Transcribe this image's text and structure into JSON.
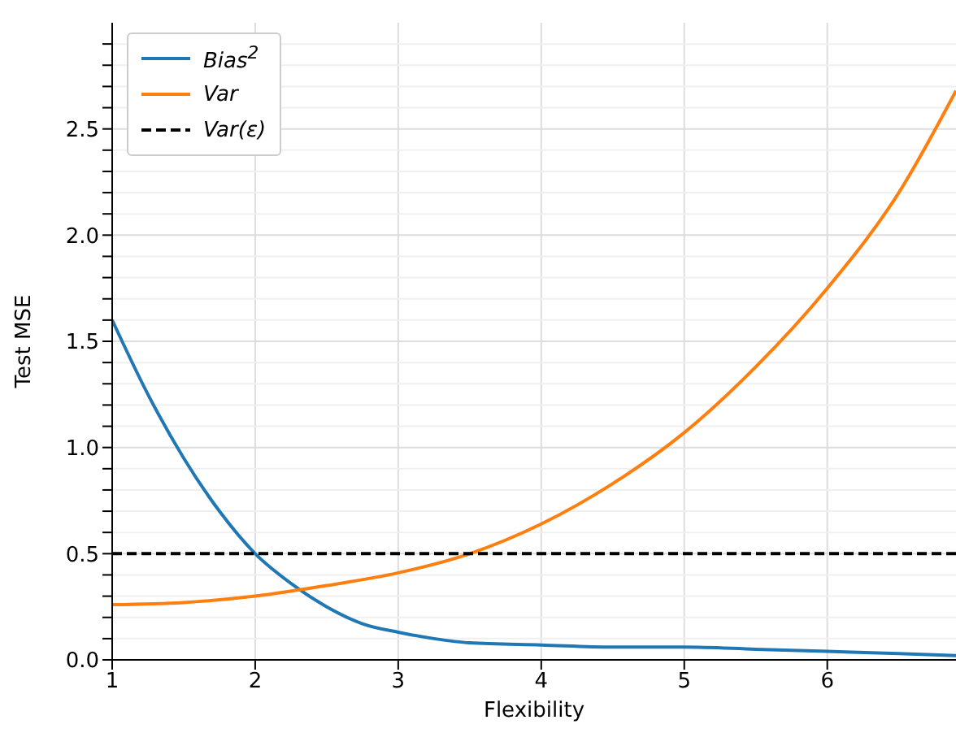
{
  "chart_data": {
    "type": "line",
    "xlabel": "Flexibility",
    "ylabel": "Test MSE",
    "xlim": [
      1,
      6.9
    ],
    "xticks": [
      1,
      2,
      3,
      4,
      5,
      6
    ],
    "ylim": [
      0,
      3.0
    ],
    "yticks": [
      {
        "value": 0,
        "label": "0.0"
      },
      {
        "value": 0.1,
        "label": null
      },
      {
        "value": 0.2,
        "label": null
      },
      {
        "value": 0.3,
        "label": null
      },
      {
        "value": 0.4,
        "label": null
      },
      0.5,
      {
        "value": 0.6,
        "label": null
      },
      {
        "value": 0.7,
        "label": null
      },
      {
        "value": 0.8,
        "label": null
      },
      {
        "value": 0.9,
        "label": null
      },
      {
        "value": 1,
        "label": "1.0"
      },
      {
        "value": 1.1,
        "label": null
      },
      {
        "value": 1.2,
        "label": null
      },
      {
        "value": 1.3,
        "label": null
      },
      {
        "value": 1.4,
        "label": null
      },
      1.5,
      {
        "value": 1.6,
        "label": null
      },
      {
        "value": 1.7,
        "label": null
      },
      {
        "value": 1.8,
        "label": null
      },
      {
        "value": 1.9,
        "label": null
      },
      {
        "value": 2,
        "label": "2.0"
      },
      {
        "value": 2.1,
        "label": null
      },
      {
        "value": 2.2,
        "label": null
      },
      {
        "value": 2.3,
        "label": null
      },
      {
        "value": 2.4,
        "label": null
      },
      2.5,
      {
        "value": 2.6,
        "label": null
      },
      {
        "value": 2.7,
        "label": null
      },
      {
        "value": 2.8,
        "label": null
      },
      {
        "value": 2.9,
        "label": null
      }
    ],
    "grid": true,
    "legend": "top left",
    "marker": "none",
    "series": [
      {
        "name": "Bias$^{2}$",
        "color": "#1f77b4",
        "line_style": "solid",
        "x": [
          1,
          1.25,
          1.5,
          1.75,
          2,
          2.25,
          2.5,
          2.75,
          3,
          3.25,
          3.5,
          4,
          4.5,
          5,
          5.5,
          6,
          6.5,
          6.9
        ],
        "values": [
          1.6,
          1.25,
          0.95,
          0.7,
          0.5,
          0.36,
          0.25,
          0.17,
          0.13,
          0.1,
          0.08,
          0.07,
          0.06,
          0.06,
          0.05,
          0.04,
          0.03,
          0.02
        ]
      },
      {
        "name": "Var",
        "color": "#ff7f0e",
        "line_style": "solid",
        "x": [
          1,
          1.5,
          2,
          2.5,
          3,
          3.5,
          4,
          4.5,
          5,
          5.5,
          6,
          6.5,
          6.9
        ],
        "values": [
          0.26,
          0.27,
          0.3,
          0.35,
          0.41,
          0.5,
          0.64,
          0.83,
          1.07,
          1.38,
          1.75,
          2.2,
          2.68
        ]
      },
      {
        "name": "Var(ε)",
        "color": "#000000",
        "line_style": "dashed",
        "x": [
          1,
          6.9
        ],
        "values": [
          0.5,
          0.5
        ]
      }
    ]
  }
}
